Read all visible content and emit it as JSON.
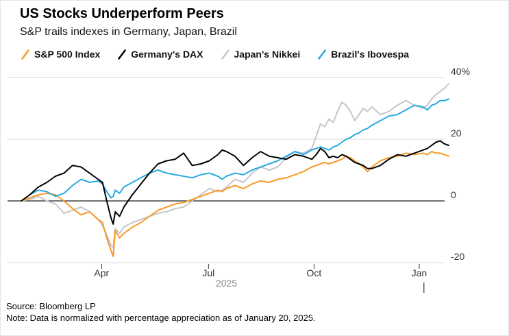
{
  "header": {
    "title": "US Stocks Underperform Peers",
    "subtitle": "S&P trails indexes in Germany, Japan, Brazil"
  },
  "legend": [
    {
      "label": "S&P 500 Index",
      "color": "#F79A28"
    },
    {
      "label": "Germany's DAX",
      "color": "#000000"
    },
    {
      "label": "Japan's Nikkei",
      "color": "#C6C6C6"
    },
    {
      "label": "Brazil's Ibovespa",
      "color": "#27AAE1"
    }
  ],
  "footer": {
    "source": "Source: Bloomberg LP",
    "note": "Note: Data is normalized with percentage appreciation as of January 20, 2025."
  },
  "chart_data": {
    "type": "line",
    "title": "US Stocks Underperform Peers",
    "subtitle": "S&P trails indexes in Germany, Japan, Brazil",
    "x_unit": "fraction of time axis, normalized baseline January 20, 2025",
    "grid": "horizontal",
    "legend_position": "top",
    "ylim": [
      -25,
      42
    ],
    "colors": {
      "grid": "#d9d9d9",
      "zero_line": "#1a1a1a",
      "tick": "#333333"
    },
    "y_ticks": [
      {
        "v": 40,
        "label": "40%"
      },
      {
        "v": 20,
        "label": "20"
      },
      {
        "v": 0,
        "label": "0"
      },
      {
        "v": -20,
        "label": "-20"
      }
    ],
    "x_ticks": [
      {
        "t": 0.188,
        "label": "Apr"
      },
      {
        "t": 0.438,
        "label": "Jul"
      },
      {
        "t": 0.685,
        "label": "Oct"
      },
      {
        "t": 0.931,
        "label": "Jan"
      }
    ],
    "year_label": "2025",
    "year_label_t": 0.48,
    "year_marker_t": 0.942,
    "x": [
      0,
      0.02,
      0.04,
      0.06,
      0.08,
      0.1,
      0.12,
      0.14,
      0.16,
      0.18,
      0.19,
      0.2,
      0.21,
      0.215,
      0.22,
      0.23,
      0.24,
      0.26,
      0.28,
      0.3,
      0.32,
      0.34,
      0.36,
      0.38,
      0.4,
      0.42,
      0.44,
      0.46,
      0.47,
      0.48,
      0.5,
      0.52,
      0.54,
      0.56,
      0.58,
      0.6,
      0.62,
      0.64,
      0.66,
      0.68,
      0.69,
      0.7,
      0.71,
      0.72,
      0.73,
      0.74,
      0.75,
      0.76,
      0.77,
      0.78,
      0.79,
      0.8,
      0.81,
      0.82,
      0.84,
      0.86,
      0.88,
      0.9,
      0.92,
      0.94,
      0.95,
      0.96,
      0.97,
      0.98,
      0.99,
      1.0
    ],
    "series": [
      {
        "id": "sp500",
        "name": "S&P 500 Index",
        "color": "#F79A28",
        "values": [
          0,
          1,
          2,
          2.5,
          2,
          0,
          -2.5,
          -4.5,
          -3.5,
          -6,
          -7,
          -12,
          -16,
          -18,
          -9.5,
          -12,
          -10.5,
          -8.5,
          -7,
          -5,
          -3,
          -2,
          -1,
          -0.5,
          0.5,
          1.5,
          2.5,
          3.5,
          3,
          4,
          5,
          4,
          5.5,
          6.5,
          6,
          7,
          7.5,
          8.5,
          9.5,
          11,
          11.5,
          12,
          12.5,
          12,
          12.5,
          13,
          13.5,
          14.5,
          14,
          13,
          12,
          11,
          9.5,
          11,
          13,
          14,
          14.5,
          15.5,
          15,
          15.5,
          15,
          16,
          15.5,
          15.5,
          15,
          14.5
        ]
      },
      {
        "id": "dax",
        "name": "Germany's DAX",
        "color": "#000000",
        "values": [
          0,
          2,
          4.5,
          6,
          8,
          9,
          11.5,
          11,
          9,
          7,
          6,
          0,
          -5.5,
          -7.5,
          -3.5,
          -5,
          -2,
          2,
          5.5,
          9,
          12,
          13,
          13.5,
          15.5,
          11.5,
          12,
          13,
          15,
          16.5,
          16,
          14.5,
          11.5,
          14,
          16,
          14.5,
          14,
          13.5,
          15,
          14.5,
          13.5,
          15,
          17,
          16,
          14,
          14.5,
          14,
          15,
          14.5,
          13.5,
          12.5,
          12,
          11.5,
          10.5,
          10.5,
          11.5,
          13.5,
          15,
          14.5,
          15.5,
          16.5,
          17,
          18,
          19,
          19.5,
          18.5,
          18
        ]
      },
      {
        "id": "nikkei",
        "name": "Japan's Nikkei",
        "color": "#C6C6C6",
        "values": [
          0,
          0.5,
          1.5,
          0,
          -1,
          -4,
          -3,
          -2,
          -3.5,
          -6,
          -8,
          -11,
          -14.5,
          -15,
          -9,
          -10.5,
          -8.5,
          -7,
          -6,
          -5,
          -4,
          -3.5,
          -2.5,
          -2,
          0,
          2,
          4,
          3,
          3.5,
          4.5,
          7,
          6,
          9,
          11,
          10,
          11,
          14,
          16,
          15.5,
          17,
          21,
          25,
          24,
          26.5,
          25.5,
          29,
          32,
          31,
          29,
          26,
          28,
          30,
          29,
          30.5,
          28,
          29,
          31,
          32.5,
          31,
          30,
          31,
          33,
          34.5,
          35.5,
          36.5,
          38
        ]
      },
      {
        "id": "ibovespa",
        "name": "Brazil's Ibovespa",
        "color": "#27AAE1",
        "values": [
          0,
          2,
          3.5,
          3,
          1.5,
          2.5,
          5,
          7,
          6,
          6.5,
          5.5,
          3,
          1,
          1.5,
          3.5,
          2.5,
          4.5,
          6,
          7.5,
          9,
          10,
          9,
          8.5,
          8,
          7.5,
          8.5,
          9,
          8,
          7,
          8,
          9,
          8.5,
          10,
          11,
          12,
          13,
          14.5,
          16,
          15,
          16.5,
          17,
          17.5,
          17,
          16.5,
          17.5,
          18,
          19,
          20,
          20.5,
          21.5,
          22,
          23,
          23.5,
          24.5,
          26,
          27.5,
          28,
          29.5,
          31,
          30.5,
          29.5,
          31,
          31.5,
          32.5,
          32.5,
          33
        ]
      }
    ]
  }
}
